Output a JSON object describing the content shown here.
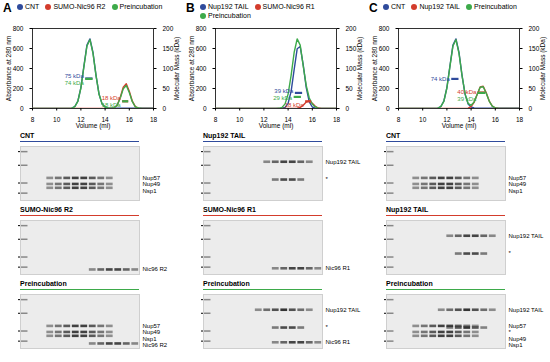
{
  "chart_data": [
    {
      "type": "line",
      "panel": "A",
      "legend": "top-left",
      "xlabel": "Volume (ml)",
      "ylabel": "Absorbance at 280 nm",
      "y2label": "Molecular Mass (kDa)",
      "xlim": [
        8,
        18
      ],
      "xticks": [
        8,
        10,
        12,
        14,
        16,
        18
      ],
      "ylim": [
        0,
        800
      ],
      "yticks": [
        0,
        200,
        400,
        600,
        800
      ],
      "y2lim": [
        0,
        200
      ],
      "y2ticks": [
        0,
        50,
        100,
        150,
        200
      ],
      "x": [
        8,
        8.25,
        8.5,
        8.75,
        9,
        9.25,
        9.5,
        9.75,
        10,
        10.25,
        10.5,
        10.75,
        11,
        11.25,
        11.5,
        11.75,
        12,
        12.25,
        12.5,
        12.75,
        13,
        13.25,
        13.5,
        13.75,
        14,
        14.25,
        14.5,
        14.75,
        15,
        15.25,
        15.5,
        15.75,
        16,
        16.25,
        16.5,
        16.75,
        17,
        17.25,
        17.5,
        17.75,
        18
      ],
      "series": [
        {
          "name": "CNT",
          "color": "#2f4b9c",
          "values": [
            0,
            0,
            0,
            0,
            0,
            0,
            0,
            0,
            0,
            0,
            0,
            0,
            1,
            4,
            20,
            75,
            209,
            425,
            634,
            696,
            560,
            332,
            144,
            46,
            15,
            6,
            3,
            2,
            2,
            2,
            2,
            2,
            2,
            2,
            2,
            2,
            2,
            2,
            2,
            2,
            2
          ]
        },
        {
          "name": "SUMO-Nic96 R2",
          "color": "#d33c2c",
          "values": [
            0,
            0,
            0,
            0,
            0,
            0,
            0,
            0,
            0,
            0,
            0,
            0,
            0,
            0,
            0,
            0,
            0,
            0,
            0,
            0,
            0,
            0,
            0,
            0,
            0,
            0,
            1,
            6,
            34,
            110,
            212,
            248,
            173,
            73,
            18,
            4,
            1,
            0,
            0,
            0,
            0
          ]
        },
        {
          "name": "Preincubation",
          "color": "#3daa4a",
          "values": [
            0,
            0,
            0,
            0,
            0,
            0,
            0,
            0,
            0,
            0,
            0,
            0,
            1,
            4,
            19,
            72,
            205,
            418,
            625,
            688,
            552,
            328,
            142,
            46,
            15,
            6,
            4,
            8,
            33,
            102,
            196,
            230,
            160,
            68,
            17,
            5,
            2,
            1,
            1,
            1,
            1
          ]
        }
      ],
      "mass": [
        {
          "series": "CNT",
          "x": [
            12.4,
            13.0
          ],
          "value": 75,
          "label": "75 kDa"
        },
        {
          "series": "Preincubation",
          "x": [
            12.4,
            13.0
          ],
          "value": 74,
          "label": "74 kDa"
        },
        {
          "series": "SUMO-Nic96 R2",
          "x": [
            15.45,
            15.95
          ],
          "value": 18,
          "label": "18 kDa"
        },
        {
          "series": "Preincubation",
          "x": [
            15.45,
            15.95
          ],
          "value": 18,
          "label": "18 kDa"
        }
      ],
      "gels": [
        {
          "title": "CNT",
          "xlim": [
            0.5,
            14.5
          ],
          "ylim": [
            17,
            56
          ],
          "yticks": [
            50,
            37,
            25,
            20
          ],
          "log": "y",
          "bands": [
            {
              "label": "Nup57",
              "mass": 28,
              "lanes": [
                4,
                11
              ]
            },
            {
              "label": "Nup49",
              "mass": 24.5,
              "lanes": [
                4,
                11
              ]
            },
            {
              "label": "Nsp1",
              "mass": 22.5,
              "lanes": [
                4,
                11
              ]
            }
          ]
        },
        {
          "title": "SUMO-Nic96 R2",
          "xlim": [
            0.5,
            14.5
          ],
          "ylim": [
            17,
            56
          ],
          "yticks": [
            50,
            37,
            25,
            20
          ],
          "log": "y",
          "bands": [
            {
              "label": "Nic96 R2",
              "mass": 19,
              "lanes": [
                9,
                14
              ]
            }
          ]
        },
        {
          "title": "Preincubation",
          "xlim": [
            0.5,
            14.5
          ],
          "ylim": [
            17,
            56
          ],
          "yticks": [
            50,
            37,
            25,
            20
          ],
          "log": "y",
          "bands": [
            {
              "label": "Nup57",
              "mass": 28,
              "lanes": [
                4,
                11
              ]
            },
            {
              "label": "Nup49",
              "mass": 24.5,
              "lanes": [
                4,
                11
              ]
            },
            {
              "label": "Nsp1",
              "mass": 22.5,
              "lanes": [
                4,
                11
              ]
            },
            {
              "label": "Nic96 R2",
              "mass": 19,
              "lanes": [
                9,
                14
              ]
            }
          ]
        }
      ]
    },
    {
      "type": "line",
      "panel": "B",
      "legend": "top-left",
      "xlabel": "Volume (ml)",
      "ylabel": "Absorbance at 280 nm",
      "y2label": "Molecular Mass (kDa)",
      "xlim": [
        8,
        18
      ],
      "xticks": [
        8,
        10,
        12,
        14,
        16,
        18
      ],
      "ylim": [
        0,
        800
      ],
      "yticks": [
        0,
        200,
        400,
        600,
        800
      ],
      "y2lim": [
        0,
        200
      ],
      "y2ticks": [
        0,
        50,
        100,
        150,
        200
      ],
      "x": [
        8,
        8.25,
        8.5,
        8.75,
        9,
        9.25,
        9.5,
        9.75,
        10,
        10.25,
        10.5,
        10.75,
        11,
        11.25,
        11.5,
        11.75,
        12,
        12.25,
        12.5,
        12.75,
        13,
        13.25,
        13.5,
        13.75,
        14,
        14.25,
        14.5,
        14.75,
        15,
        15.25,
        15.5,
        15.75,
        16,
        16.25,
        16.5,
        16.75,
        17,
        17.25,
        17.5,
        17.75,
        18
      ],
      "series": [
        {
          "name": "Nup192 TAIL",
          "color": "#2f4b9c",
          "values": [
            0,
            0,
            0,
            0,
            0,
            0,
            0,
            0,
            0,
            0,
            0,
            0,
            0,
            0,
            0,
            0,
            0,
            0,
            0,
            0,
            0,
            0,
            2,
            10,
            51,
            171,
            388,
            597,
            620,
            437,
            208,
            67,
            15,
            3,
            1,
            0,
            0,
            0,
            0,
            0,
            0
          ]
        },
        {
          "name": "SUMO-Nic96 R1",
          "color": "#d33c2c",
          "values": [
            0,
            0,
            0,
            0,
            0,
            0,
            0,
            0,
            0,
            0,
            0,
            0,
            0,
            0,
            0,
            0,
            0,
            0,
            0,
            0,
            0,
            0,
            0,
            0,
            0,
            0,
            0,
            2,
            10,
            33,
            64,
            75,
            52,
            22,
            5,
            1,
            0,
            0,
            0,
            0,
            0
          ]
        },
        {
          "name": "Preincubation",
          "color": "#3daa4a",
          "values": [
            0,
            0,
            0,
            0,
            0,
            0,
            0,
            0,
            0,
            0,
            0,
            0,
            0,
            0,
            0,
            0,
            0,
            0,
            0,
            0,
            0,
            2,
            11,
            46,
            144,
            332,
            560,
            696,
            634,
            425,
            229,
            105,
            45,
            16,
            4,
            1,
            0,
            0,
            0,
            0,
            0
          ]
        }
      ],
      "mass": [
        {
          "series": "Nup192 TAIL",
          "x": [
            14.6,
            15.2
          ],
          "value": 39,
          "label": "39 kDa"
        },
        {
          "series": "Preincubation",
          "x": [
            14.5,
            15.1
          ],
          "value": 29,
          "label": "29 kDa"
        },
        {
          "series": "SUMO-Nic96 R1",
          "x": [
            15.45,
            15.95
          ],
          "value": 18,
          "label": "18 kDa"
        }
      ],
      "gels": [
        {
          "title": "Nup192 TAIL",
          "xlim": [
            0.5,
            14.5
          ],
          "ylim": [
            17,
            56
          ],
          "yticks": [
            50,
            37,
            25,
            20
          ],
          "log": "y",
          "bands": [
            {
              "label": "Nup192 TAIL",
              "mass": 40,
              "lanes": [
                8,
                13
              ]
            },
            {
              "label": "*",
              "mass": 27,
              "lanes": [
                9,
                12
              ]
            }
          ]
        },
        {
          "title": "SUMO-Nic96 R1",
          "xlim": [
            0.5,
            14.5
          ],
          "ylim": [
            17,
            56
          ],
          "yticks": [
            50,
            37,
            25,
            20
          ],
          "log": "y",
          "bands": [
            {
              "label": "Nic96 R1",
              "mass": 19.5,
              "lanes": [
                9,
                14
              ]
            }
          ]
        },
        {
          "title": "Preincubation",
          "xlim": [
            0.5,
            14.5
          ],
          "ylim": [
            17,
            56
          ],
          "yticks": [
            50,
            37,
            25,
            20
          ],
          "log": "y",
          "bands": [
            {
              "label": "Nup192 TAIL",
              "mass": 40,
              "lanes": [
                7,
                13
              ]
            },
            {
              "label": "*",
              "mass": 27,
              "lanes": [
                9,
                12
              ]
            },
            {
              "label": "Nic96 R1",
              "mass": 19.5,
              "lanes": [
                9,
                14
              ]
            }
          ]
        }
      ]
    },
    {
      "type": "line",
      "panel": "C",
      "legend": "top-left",
      "xlabel": "Volume (ml)",
      "ylabel": "Absorbance at 280 nm",
      "y2label": "Molecular Mass (kDa)",
      "xlim": [
        8,
        18
      ],
      "xticks": [
        8,
        10,
        12,
        14,
        16,
        18
      ],
      "ylim": [
        0,
        800
      ],
      "yticks": [
        0,
        200,
        400,
        600,
        800
      ],
      "y2lim": [
        0,
        200
      ],
      "y2ticks": [
        0,
        50,
        100,
        150,
        200
      ],
      "x": [
        8,
        8.25,
        8.5,
        8.75,
        9,
        9.25,
        9.5,
        9.75,
        10,
        10.25,
        10.5,
        10.75,
        11,
        11.25,
        11.5,
        11.75,
        12,
        12.25,
        12.5,
        12.75,
        13,
        13.25,
        13.5,
        13.75,
        14,
        14.25,
        14.5,
        14.75,
        15,
        15.25,
        15.5,
        15.75,
        16,
        16.25,
        16.5,
        16.75,
        17,
        17.25,
        17.5,
        17.75,
        18
      ],
      "series": [
        {
          "name": "CNT",
          "color": "#2f4b9c",
          "values": [
            0,
            0,
            0,
            0,
            0,
            0,
            0,
            0,
            0,
            0,
            0,
            0,
            1,
            4,
            20,
            75,
            209,
            425,
            634,
            696,
            560,
            332,
            144,
            46,
            15,
            6,
            3,
            2,
            2,
            2,
            2,
            2,
            2,
            2,
            2,
            2,
            2,
            2,
            2,
            2,
            2
          ]
        },
        {
          "name": "Nup192 TAIL",
          "color": "#d33c2c",
          "values": [
            0,
            0,
            0,
            0,
            0,
            0,
            0,
            0,
            0,
            0,
            0,
            0,
            0,
            0,
            0,
            0,
            0,
            0,
            0,
            0,
            0,
            0,
            1,
            4,
            18,
            62,
            140,
            215,
            223,
            157,
            75,
            24,
            5,
            1,
            0,
            0,
            0,
            0,
            0,
            0,
            0
          ]
        },
        {
          "name": "Preincubation",
          "color": "#3daa4a",
          "values": [
            0,
            0,
            0,
            0,
            0,
            0,
            0,
            0,
            0,
            0,
            0,
            0,
            1,
            4,
            19,
            72,
            205,
            418,
            625,
            688,
            552,
            330,
            146,
            52,
            32,
            64,
            140,
            212,
            218,
            152,
            72,
            23,
            6,
            2,
            1,
            1,
            1,
            1,
            1,
            1,
            1
          ]
        }
      ],
      "mass": [
        {
          "series": "CNT",
          "x": [
            12.4,
            13.0
          ],
          "value": 74,
          "label": "74 kDa"
        },
        {
          "series": "Nup192 TAIL",
          "x": [
            14.6,
            15.2
          ],
          "value": 40,
          "label": "40 kDa"
        },
        {
          "series": "Preincubation",
          "x": [
            14.6,
            15.2
          ],
          "value": 39,
          "label": "39 kDa"
        }
      ],
      "gels": [
        {
          "title": "CNT",
          "xlim": [
            0.5,
            14.5
          ],
          "ylim": [
            17,
            56
          ],
          "yticks": [
            50,
            37,
            25,
            20
          ],
          "log": "y",
          "bands": [
            {
              "label": "Nup57",
              "mass": 28,
              "lanes": [
                4,
                11
              ]
            },
            {
              "label": "Nup49",
              "mass": 24.5,
              "lanes": [
                4,
                11
              ]
            },
            {
              "label": "Nsp1",
              "mass": 22.5,
              "lanes": [
                4,
                11
              ]
            }
          ]
        },
        {
          "title": "Nup192 TAIL",
          "xlim": [
            0.5,
            14.5
          ],
          "ylim": [
            17,
            56
          ],
          "yticks": [
            50,
            37,
            25,
            20
          ],
          "log": "y",
          "bands": [
            {
              "label": "Nup192 TAIL",
              "mass": 40,
              "lanes": [
                8,
                13
              ]
            },
            {
              "label": "*",
              "mass": 27,
              "lanes": [
                9,
                12
              ]
            }
          ]
        },
        {
          "title": "Preincubation",
          "xlim": [
            0.5,
            14.5
          ],
          "ylim": [
            17,
            56
          ],
          "yticks": [
            50,
            37,
            25,
            20
          ],
          "log": "y",
          "bands": [
            {
              "label": "Nup192 TAIL",
              "mass": 40,
              "lanes": [
                7,
                13
              ]
            },
            {
              "label": "*",
              "mass": 27,
              "lanes": [
                8,
                12
              ]
            },
            {
              "label": "Nup57",
              "mass": 28,
              "lanes": [
                4,
                11
              ]
            },
            {
              "label": "Nup49",
              "mass": 24.5,
              "lanes": [
                4,
                11
              ]
            },
            {
              "label": "Nsp1",
              "mass": 22.5,
              "lanes": [
                4,
                11
              ]
            }
          ]
        }
      ]
    }
  ]
}
